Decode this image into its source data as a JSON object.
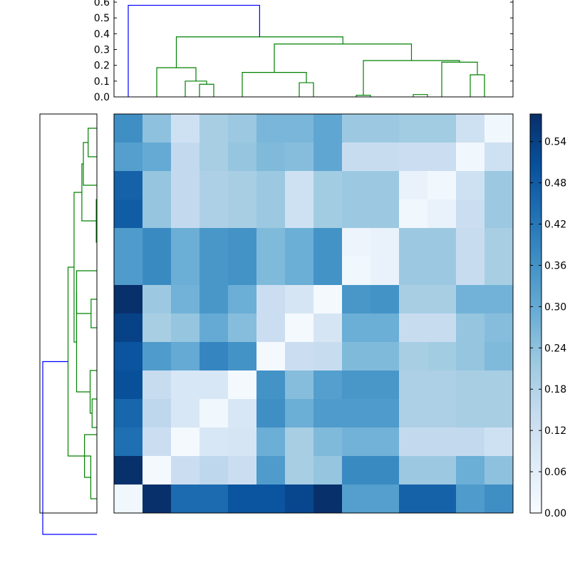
{
  "chart_data": [
    {
      "type": "dendrogram",
      "orientation": "top",
      "ylim": [
        0,
        0.6
      ],
      "yticks": [
        "0.0",
        "0.1",
        "0.2",
        "0.3",
        "0.4",
        "0.5",
        "0.6"
      ],
      "ytick_values": [
        0,
        0.1,
        0.2,
        0.3,
        0.4,
        0.5,
        0.6
      ],
      "links": [
        {
          "left": 6,
          "right": 7,
          "height": 0.08,
          "color": "#008000"
        },
        {
          "left": 5,
          "right": 6.5,
          "height": 0.1,
          "color": "#008000"
        },
        {
          "left": 3,
          "right": 5.75,
          "height": 0.185,
          "color": "#008000"
        },
        {
          "left": 13,
          "right": 14,
          "height": 0.09,
          "color": "#008000"
        },
        {
          "left": 9,
          "right": 13.5,
          "height": 0.155,
          "color": "#008000"
        },
        {
          "left": 17,
          "right": 18,
          "height": 0.01,
          "color": "#008000"
        },
        {
          "left": 21,
          "right": 22,
          "height": 0.015,
          "color": "#008000"
        },
        {
          "left": 25,
          "right": 26,
          "height": 0.14,
          "color": "#008000"
        },
        {
          "left": 23,
          "right": 25.5,
          "height": 0.22,
          "color": "#008000"
        },
        {
          "left": 17.5,
          "right": 24.25,
          "height": 0.23,
          "color": "#008000"
        },
        {
          "left": 11.25,
          "right": 20.875,
          "height": 0.335,
          "color": "#008000"
        },
        {
          "left": 4.375,
          "right": 16.0625,
          "height": 0.38,
          "color": "#008000"
        },
        {
          "left": 1,
          "right": 10.21875,
          "height": 0.58,
          "color": "#0000ff"
        }
      ]
    },
    {
      "type": "dendrogram",
      "orientation": "left",
      "links": [
        {
          "top": 1,
          "bottom": 3,
          "height": 0.093,
          "color": "#008000"
        },
        {
          "top": 2,
          "bottom": 5,
          "height": 0.144,
          "color": "#008000"
        },
        {
          "top": 6,
          "bottom": 9,
          "height": 0.007,
          "color": "#008000"
        },
        {
          "top": 3.5,
          "bottom": 7.5,
          "height": 0.16,
          "color": "#008000"
        },
        {
          "top": 13,
          "bottom": 15,
          "height": 0.062,
          "color": "#008000"
        },
        {
          "top": 11,
          "bottom": 14,
          "height": 0.216,
          "color": "#008000"
        },
        {
          "top": 20,
          "bottom": 22,
          "height": 0.051,
          "color": "#008000"
        },
        {
          "top": 18,
          "bottom": 21,
          "height": 0.072,
          "color": "#008000"
        },
        {
          "top": 12.5,
          "bottom": 19.5,
          "height": 0.216,
          "color": "#008000"
        },
        {
          "top": 5.5,
          "bottom": 16,
          "height": 0.243,
          "color": "#008000"
        },
        {
          "top": 24,
          "bottom": 27,
          "height": 0.065,
          "color": "#008000"
        },
        {
          "top": 22.5,
          "bottom": 25.5,
          "height": 0.132,
          "color": "#008000"
        },
        {
          "top": 10.75,
          "bottom": 24,
          "height": 0.307,
          "color": "#008000"
        },
        {
          "top": 17.375,
          "bottom": 29.5,
          "height": 0.576,
          "color": "#0000ff"
        }
      ]
    },
    {
      "type": "heatmap",
      "rows": 14,
      "cols": 14,
      "colormap": "Blues",
      "vmin": 0,
      "vmax": 0.58,
      "values": [
        [
          0.37,
          0.24,
          0.12,
          0.2,
          0.22,
          0.27,
          0.27,
          0.31,
          0.22,
          0.22,
          0.21,
          0.21,
          0.12,
          0.02
        ],
        [
          0.33,
          0.3,
          0.15,
          0.2,
          0.23,
          0.26,
          0.25,
          0.31,
          0.14,
          0.14,
          0.13,
          0.13,
          0.02,
          0.12
        ],
        [
          0.47,
          0.23,
          0.15,
          0.19,
          0.2,
          0.22,
          0.12,
          0.21,
          0.22,
          0.22,
          0.04,
          0.02,
          0.12,
          0.22
        ],
        [
          0.48,
          0.23,
          0.15,
          0.19,
          0.2,
          0.22,
          0.12,
          0.21,
          0.22,
          0.22,
          0.02,
          0.04,
          0.13,
          0.22
        ],
        [
          0.34,
          0.38,
          0.29,
          0.35,
          0.36,
          0.26,
          0.29,
          0.36,
          0.03,
          0.04,
          0.22,
          0.22,
          0.14,
          0.2
        ],
        [
          0.34,
          0.38,
          0.29,
          0.35,
          0.36,
          0.26,
          0.29,
          0.36,
          0.02,
          0.04,
          0.22,
          0.22,
          0.14,
          0.2
        ],
        [
          0.58,
          0.22,
          0.28,
          0.35,
          0.29,
          0.13,
          0.1,
          0.01,
          0.35,
          0.36,
          0.2,
          0.2,
          0.28,
          0.28
        ],
        [
          0.54,
          0.2,
          0.23,
          0.3,
          0.25,
          0.13,
          0.01,
          0.1,
          0.29,
          0.29,
          0.14,
          0.14,
          0.23,
          0.25
        ],
        [
          0.5,
          0.34,
          0.3,
          0.39,
          0.36,
          0.01,
          0.13,
          0.14,
          0.26,
          0.26,
          0.2,
          0.21,
          0.23,
          0.26
        ],
        [
          0.51,
          0.14,
          0.09,
          0.09,
          0.01,
          0.36,
          0.25,
          0.33,
          0.35,
          0.35,
          0.19,
          0.19,
          0.2,
          0.2
        ],
        [
          0.46,
          0.16,
          0.09,
          0.02,
          0.09,
          0.37,
          0.29,
          0.34,
          0.34,
          0.34,
          0.19,
          0.19,
          0.2,
          0.2
        ],
        [
          0.44,
          0.13,
          0.01,
          0.09,
          0.1,
          0.29,
          0.2,
          0.26,
          0.28,
          0.28,
          0.15,
          0.15,
          0.15,
          0.12
        ],
        [
          0.58,
          0.01,
          0.13,
          0.16,
          0.13,
          0.34,
          0.2,
          0.23,
          0.38,
          0.38,
          0.22,
          0.22,
          0.29,
          0.24
        ],
        [
          0.02,
          0.58,
          0.45,
          0.45,
          0.5,
          0.5,
          0.53,
          0.58,
          0.33,
          0.33,
          0.47,
          0.47,
          0.34,
          0.37
        ]
      ]
    },
    {
      "type": "colorbar",
      "vmin": 0,
      "vmax": 0.58,
      "ticks": [
        "0.00",
        "0.06",
        "0.12",
        "0.18",
        "0.24",
        "0.30",
        "0.36",
        "0.42",
        "0.48",
        "0.54"
      ],
      "tick_values": [
        0,
        0.06,
        0.12,
        0.18,
        0.24,
        0.3,
        0.36,
        0.42,
        0.48,
        0.54
      ]
    }
  ]
}
